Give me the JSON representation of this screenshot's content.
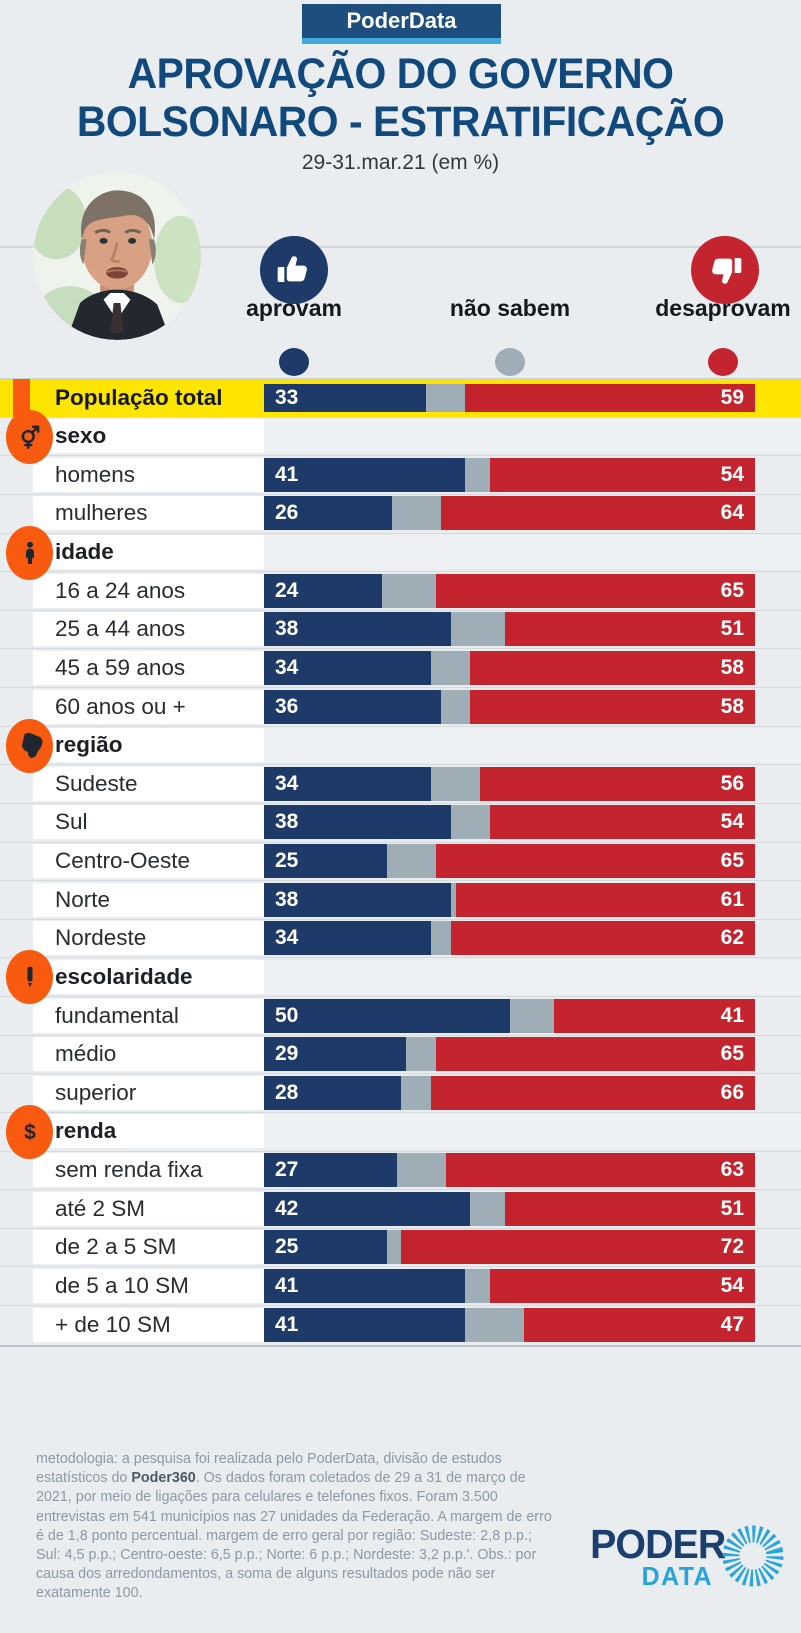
{
  "header": {
    "badge": "PoderData",
    "title_line1": "APROVAÇÃO DO GOVERNO",
    "title_line2": "BOLSONARO - ESTRATIFICAÇÃO",
    "subtitle": "29-31.mar.21 (em %)"
  },
  "legend": {
    "approve_label": "aprovam",
    "dontknow_label": "não sabem",
    "disapprove_label": "desaprovam"
  },
  "colors": {
    "approve_blue": "#1d3a68",
    "dontknow_gray": "#9fadb7",
    "disapprove_red": "#c3242d",
    "highlight_yellow": "#fde500",
    "accent_orange": "#f85a10",
    "title_navy": "#11497c",
    "badge_blue": "#1d4e7e",
    "badge_underline": "#41a7dc",
    "logo_navy": "#1b3f6e",
    "logo_lightblue": "#29a3dc"
  },
  "chart_data": {
    "type": "bar",
    "stacked": true,
    "orientation": "horizontal",
    "unit": "%",
    "series_names": [
      "aprovam",
      "não sabem",
      "desaprovam"
    ],
    "rows": [
      {
        "type": "total",
        "label": "População total",
        "aprovam": 33,
        "nao_sabem": 8,
        "desaprovam": 59
      },
      {
        "type": "section",
        "label": "sexo",
        "icon": "gender-icon"
      },
      {
        "type": "data",
        "label": "homens",
        "aprovam": 41,
        "nao_sabem": 5,
        "desaprovam": 54
      },
      {
        "type": "data",
        "label": "mulheres",
        "aprovam": 26,
        "nao_sabem": 10,
        "desaprovam": 64
      },
      {
        "type": "section",
        "label": "idade",
        "icon": "person-icon"
      },
      {
        "type": "data",
        "label": "16 a 24 anos",
        "aprovam": 24,
        "nao_sabem": 11,
        "desaprovam": 65
      },
      {
        "type": "data",
        "label": "25 a 44 anos",
        "aprovam": 38,
        "nao_sabem": 11,
        "desaprovam": 51
      },
      {
        "type": "data",
        "label": "45 a 59 anos",
        "aprovam": 34,
        "nao_sabem": 8,
        "desaprovam": 58
      },
      {
        "type": "data",
        "label": "60 anos ou +",
        "aprovam": 36,
        "nao_sabem": 6,
        "desaprovam": 58
      },
      {
        "type": "section",
        "label": "região",
        "icon": "brazil-map-icon"
      },
      {
        "type": "data",
        "label": "Sudeste",
        "aprovam": 34,
        "nao_sabem": 10,
        "desaprovam": 56
      },
      {
        "type": "data",
        "label": "Sul",
        "aprovam": 38,
        "nao_sabem": 8,
        "desaprovam": 54
      },
      {
        "type": "data",
        "label": "Centro-Oeste",
        "aprovam": 25,
        "nao_sabem": 10,
        "desaprovam": 65
      },
      {
        "type": "data",
        "label": "Norte",
        "aprovam": 38,
        "nao_sabem": 1,
        "desaprovam": 61
      },
      {
        "type": "data",
        "label": "Nordeste",
        "aprovam": 34,
        "nao_sabem": 4,
        "desaprovam": 62
      },
      {
        "type": "section",
        "label": "escolaridade",
        "icon": "pencil-icon"
      },
      {
        "type": "data",
        "label": "fundamental",
        "aprovam": 50,
        "nao_sabem": 9,
        "desaprovam": 41
      },
      {
        "type": "data",
        "label": "médio",
        "aprovam": 29,
        "nao_sabem": 6,
        "desaprovam": 65
      },
      {
        "type": "data",
        "label": "superior",
        "aprovam": 28,
        "nao_sabem": 6,
        "desaprovam": 66
      },
      {
        "type": "section",
        "label": "renda",
        "icon": "dollar-icon"
      },
      {
        "type": "data",
        "label": "sem renda fixa",
        "aprovam": 27,
        "nao_sabem": 10,
        "desaprovam": 63
      },
      {
        "type": "data",
        "label": "até 2 SM",
        "aprovam": 42,
        "nao_sabem": 7,
        "desaprovam": 51
      },
      {
        "type": "data",
        "label": "de 2 a 5 SM",
        "aprovam": 25,
        "nao_sabem": 3,
        "desaprovam": 72
      },
      {
        "type": "data",
        "label": "de 5 a 10 SM",
        "aprovam": 41,
        "nao_sabem": 5,
        "desaprovam": 54
      },
      {
        "type": "data",
        "label": "+ de 10 SM",
        "aprovam": 41,
        "nao_sabem": 12,
        "desaprovam": 47
      }
    ]
  },
  "footer": {
    "text_before": "metodologia: a pesquisa foi realizada pelo PoderData, divisão de estudos estatísticos do ",
    "text_bold": "Poder360",
    "text_after": ". Os dados foram coletados de 29 a 31 de março de 2021, por meio de ligações para celulares e telefones fixos. Foram 3.500 entrevistas em 541 municípios nas 27 unidades da Federação. A margem de erro é de 1,8 ponto percentual. margem de erro geral por região: Sudeste: 2,8 p.p.; Sul: 4,5 p.p.; Centro-oeste: 6,5 p.p.; Norte: 6 p.p.; Nordeste: 3,2 p.p.'. Obs.: por causa dos arredondamentos, a soma de alguns resultados pode não ser exatamente 100.",
    "logo_poder": "PODER",
    "logo_data": "DATA"
  }
}
